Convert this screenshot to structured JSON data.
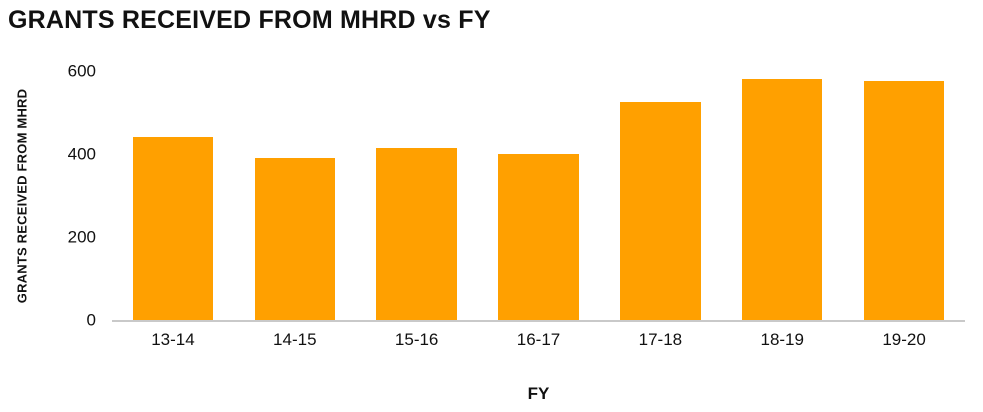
{
  "chart_data": {
    "type": "bar",
    "title": "GRANTS RECEIVED FROM MHRD vs FY",
    "xlabel": "FY",
    "ylabel": "GRANTS RECEIVED FROM MHRD",
    "categories": [
      "13-14",
      "14-15",
      "15-16",
      "16-17",
      "17-18",
      "18-19",
      "19-20"
    ],
    "values": [
      440,
      390,
      415,
      400,
      525,
      580,
      575
    ],
    "yticks": [
      0,
      200,
      400,
      600
    ],
    "ylim": [
      0,
      600
    ],
    "grid": false,
    "legend": false,
    "bar_color": "#FFA000",
    "axis_line_color": "#C9C9C9",
    "text_color": "#111111",
    "background_color": "#FFFFFF"
  }
}
